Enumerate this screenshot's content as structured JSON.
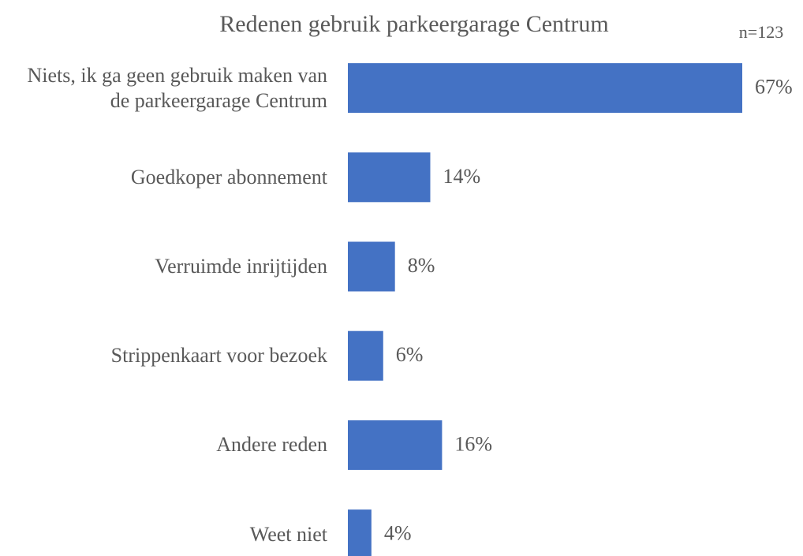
{
  "chart_data": {
    "type": "hbar",
    "title": "Redenen gebruik parkeergarage Centrum",
    "annotation": "n=123",
    "categories": [
      "Niets, ik ga geen gebruik maken van de parkeergarage Centrum",
      "Goedkoper abonnement",
      "Verruimde inrijtijden",
      "Strippenkaart voor bezoek",
      "Andere reden",
      "Weet niet"
    ],
    "values": [
      67,
      14,
      8,
      6,
      16,
      4
    ],
    "value_labels": [
      "67%",
      "14%",
      "8%",
      "6%",
      "16%",
      "4%"
    ],
    "color": "#4472c4"
  }
}
